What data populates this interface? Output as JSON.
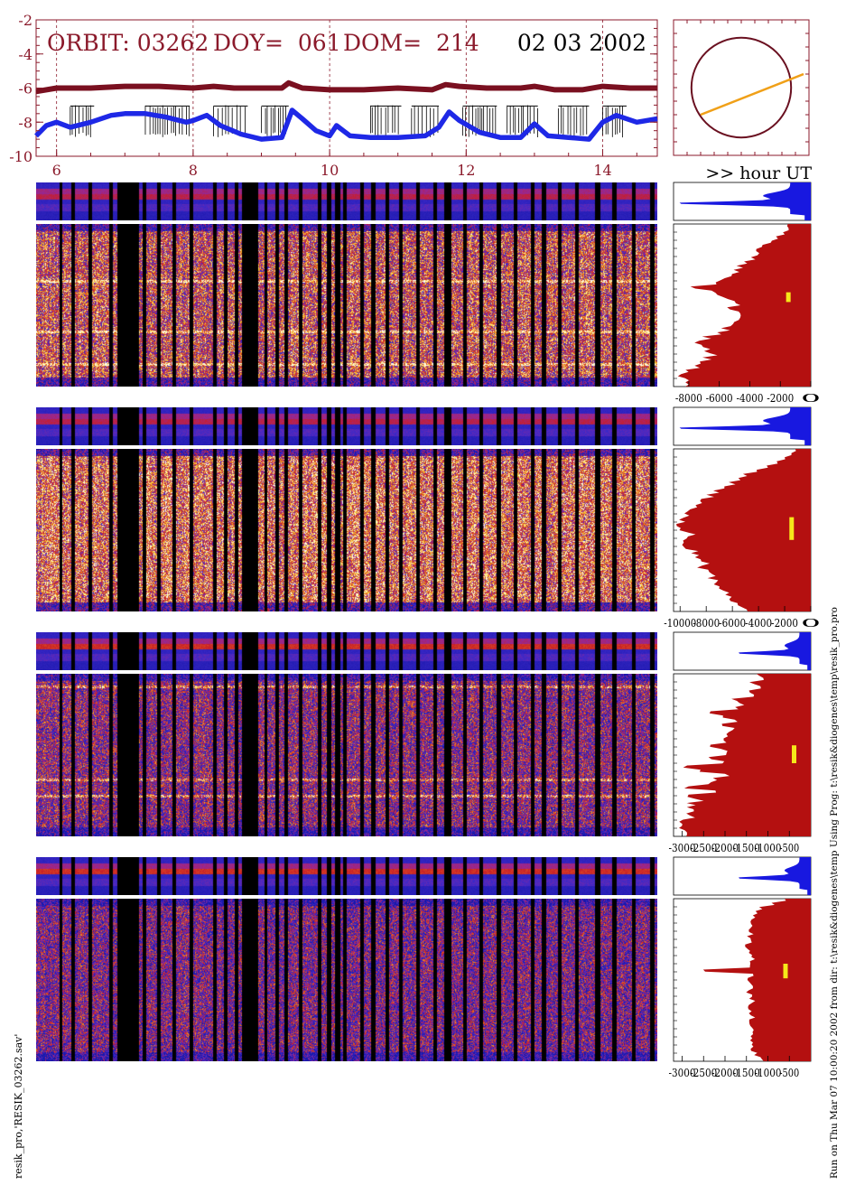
{
  "header": {
    "orbit_label": "ORBIT: 03262",
    "doy_label": "DOY=  061",
    "dom_label": "DOM=  214",
    "date": "02 03 2002",
    "x_unit": ">> hour UT"
  },
  "colors": {
    "axis_red": "#8b1a2b",
    "upper_series": "#7a1020",
    "lower_series": "#1e28e6",
    "flags": "#000000",
    "histogram_fill": "#b41010",
    "histogram_top": "#1818e0",
    "marker": "#f6e81a",
    "orbit_line": "#f0a018",
    "orbit_circle": "#6a1020"
  },
  "chart_data": [
    {
      "type": "line",
      "name": "time-series",
      "xlim": [
        5.7,
        14.8
      ],
      "ylim": [
        -10,
        -2
      ],
      "x_ticks": [
        "6",
        "8",
        "10",
        "12",
        "14"
      ],
      "y_ticks": [
        "-2",
        "-4",
        "-6",
        "-8",
        "-10"
      ],
      "grid_x": [
        6,
        8,
        10,
        12,
        14
      ],
      "series": [
        {
          "role": "upper",
          "x": [
            5.7,
            6.0,
            6.5,
            7.0,
            7.5,
            8.0,
            8.3,
            8.6,
            9.0,
            9.3,
            9.4,
            9.6,
            10.0,
            10.5,
            11.0,
            11.5,
            11.7,
            11.9,
            12.3,
            12.8,
            13.0,
            13.3,
            13.7,
            14.0,
            14.4,
            14.8
          ],
          "y": [
            -6.2,
            -6.0,
            -6.0,
            -5.9,
            -5.9,
            -6.0,
            -5.9,
            -6.0,
            -6.0,
            -6.0,
            -5.7,
            -6.0,
            -6.1,
            -6.1,
            -6.0,
            -6.1,
            -5.8,
            -5.9,
            -6.0,
            -6.0,
            -5.9,
            -6.1,
            -6.1,
            -5.9,
            -6.0,
            -6.0
          ]
        },
        {
          "role": "lower",
          "x": [
            5.7,
            5.85,
            6.0,
            6.2,
            6.5,
            6.8,
            7.0,
            7.3,
            7.6,
            7.9,
            8.0,
            8.2,
            8.4,
            8.7,
            9.0,
            9.3,
            9.45,
            9.6,
            9.8,
            10.0,
            10.1,
            10.3,
            10.6,
            11.0,
            11.4,
            11.6,
            11.75,
            11.9,
            12.2,
            12.5,
            12.8,
            13.0,
            13.2,
            13.5,
            13.8,
            14.0,
            14.2,
            14.5,
            14.8
          ],
          "y": [
            -8.8,
            -8.2,
            -8.0,
            -8.3,
            -8.0,
            -7.6,
            -7.5,
            -7.5,
            -7.7,
            -8.0,
            -7.9,
            -7.6,
            -8.2,
            -8.7,
            -9.0,
            -8.9,
            -7.3,
            -7.8,
            -8.5,
            -8.8,
            -8.2,
            -8.8,
            -8.9,
            -8.9,
            -8.8,
            -8.3,
            -7.4,
            -7.9,
            -8.6,
            -8.9,
            -8.9,
            -8.1,
            -8.8,
            -8.9,
            -9.0,
            -8.0,
            -7.6,
            -8.0,
            -7.8
          ]
        }
      ],
      "flag_intervals": [
        [
          6.2,
          6.55
        ],
        [
          7.3,
          7.95
        ],
        [
          8.3,
          8.8
        ],
        [
          9.0,
          9.4
        ],
        [
          10.6,
          11.05
        ],
        [
          11.2,
          11.6
        ],
        [
          11.95,
          12.45
        ],
        [
          12.6,
          13.05
        ],
        [
          13.35,
          13.8
        ],
        [
          14.0,
          14.35
        ]
      ]
    },
    {
      "type": "line",
      "name": "orbit-track",
      "circle": {
        "cx": 0.5,
        "cy": 0.5,
        "r": 0.4
      },
      "segment": {
        "x": [
          0.2,
          0.96
        ],
        "y": [
          0.3,
          0.6
        ]
      }
    },
    {
      "type": "heatmap",
      "name": "spectrogram-1",
      "channels": 11,
      "seed": 11,
      "intensity": 0.58,
      "yellow_rows": [
        0.35,
        0.66,
        0.86
      ],
      "histogram_xticks": [
        "-8000",
        "-6000",
        "-4000",
        "-2000",
        "0"
      ],
      "histogram_xlim": [
        -9000,
        0
      ],
      "histogram_profile": [
        1500,
        1400,
        1800,
        2200,
        2600,
        3100,
        3500,
        3400,
        3900,
        4300,
        4700,
        5000,
        5300,
        5800,
        6100,
        8200,
        6300,
        5900,
        5400,
        5000,
        5300,
        4800,
        4600,
        4900,
        5200,
        5700,
        6200,
        7000,
        7400,
        7200,
        6800,
        6400,
        6900,
        7300,
        7800,
        8300,
        8600,
        8500,
        8300,
        8000
      ],
      "marker": {
        "value": -1500,
        "y": [
          0.42,
          0.48
        ]
      }
    },
    {
      "type": "heatmap",
      "name": "spectrogram-2",
      "channels": 11,
      "seed": 23,
      "intensity": 0.66,
      "yellow_rows": [],
      "histogram_xticks": [
        "-10000",
        "-8000",
        "-6000",
        "-4000",
        "-2000",
        "0"
      ],
      "histogram_xlim": [
        -10500,
        0
      ],
      "histogram_profile": [
        1200,
        1500,
        2000,
        2700,
        3500,
        4300,
        5000,
        5500,
        6200,
        6700,
        7200,
        7700,
        8200,
        8600,
        9000,
        9300,
        9600,
        9800,
        9900,
        9700,
        9500,
        9700,
        9900,
        9600,
        9200,
        8900,
        8600,
        8200,
        8400,
        7900,
        7500,
        7700,
        7300,
        7000,
        6700,
        6400,
        6000,
        5600,
        5200,
        4900
      ],
      "marker": {
        "value": -1500,
        "y": [
          0.42,
          0.56
        ]
      }
    },
    {
      "type": "heatmap",
      "name": "spectrogram-3",
      "channels": 11,
      "seed": 37,
      "intensity": 0.4,
      "yellow_rows": [
        0.08,
        0.65,
        0.75
      ],
      "histogram_xticks": [
        "-3000",
        "-2500",
        "-2000",
        "-1500",
        "-1000",
        "-500"
      ],
      "histogram_xlim": [
        -3200,
        0
      ],
      "histogram_profile": [
        1300,
        1100,
        1400,
        1200,
        1500,
        1350,
        1800,
        1650,
        1750,
        2300,
        2000,
        1800,
        2000,
        1800,
        1900,
        2000,
        2000,
        2300,
        2100,
        2000,
        2400,
        2100,
        3000,
        2500,
        2000,
        2200,
        2300,
        2900,
        2300,
        2800,
        2700,
        2800,
        2900,
        2800,
        2900,
        3000,
        2950,
        3000,
        2950,
        2900
      ],
      "marker": {
        "value": -400,
        "y": [
          0.44,
          0.55
        ]
      }
    },
    {
      "type": "heatmap",
      "name": "spectrogram-4",
      "channels": 11,
      "seed": 53,
      "intensity": 0.36,
      "yellow_rows": [],
      "histogram_xticks": [
        "-3000",
        "-2500",
        "-2000",
        "-1500",
        "-1000",
        "-500"
      ],
      "histogram_xlim": [
        -3200,
        0
      ],
      "histogram_profile": [
        600,
        900,
        1200,
        1300,
        1400,
        1400,
        1400,
        1400,
        1450,
        1450,
        1400,
        1500,
        1450,
        1400,
        1400,
        1450,
        1400,
        2500,
        1400,
        1450,
        1400,
        1400,
        1450,
        1400,
        1400,
        1400,
        1450,
        1400,
        1400,
        1450,
        1400,
        1400,
        1400,
        1400,
        1450,
        1400,
        1400,
        1300,
        1200,
        1100
      ],
      "marker": {
        "value": -600,
        "y": [
          0.4,
          0.49
        ]
      }
    }
  ],
  "gaps": [
    [
      6.05,
      6.08
    ],
    [
      6.22,
      6.26
    ],
    [
      6.47,
      6.52
    ],
    [
      6.78,
      6.82
    ],
    [
      6.9,
      7.2
    ],
    [
      7.27,
      7.31
    ],
    [
      7.48,
      7.52
    ],
    [
      7.71,
      7.75
    ],
    [
      7.95,
      8.0
    ],
    [
      8.3,
      8.34
    ],
    [
      8.46,
      8.5
    ],
    [
      8.62,
      8.65
    ],
    [
      8.72,
      8.95
    ],
    [
      9.05,
      9.08
    ],
    [
      9.21,
      9.25
    ],
    [
      9.35,
      9.38
    ],
    [
      9.55,
      9.59
    ],
    [
      9.83,
      9.87
    ],
    [
      9.97,
      10.02
    ],
    [
      10.08,
      10.15
    ],
    [
      10.2,
      10.24
    ],
    [
      10.45,
      10.49
    ],
    [
      10.62,
      10.67
    ],
    [
      10.82,
      10.86
    ],
    [
      11.03,
      11.07
    ],
    [
      11.28,
      11.32
    ],
    [
      11.52,
      11.56
    ],
    [
      11.68,
      11.78
    ],
    [
      11.96,
      12.0
    ],
    [
      12.2,
      12.24
    ],
    [
      12.45,
      12.5
    ],
    [
      12.7,
      12.74
    ],
    [
      12.95,
      13.0
    ],
    [
      13.12,
      13.16
    ],
    [
      13.35,
      13.39
    ],
    [
      13.6,
      13.64
    ],
    [
      13.9,
      13.96
    ],
    [
      14.15,
      14.2
    ],
    [
      14.43,
      14.47
    ],
    [
      14.7,
      14.75
    ]
  ],
  "footer": {
    "left_note": "resik_pro,'RESIK_03262.sav'",
    "right_note": "Run on Thu Mar 07 10:00:20 2002   from dir: t:\\resik&diogenes\\temp Using Prog: t:\\resik&diogenes\\temp\\resik_pro.pro"
  }
}
